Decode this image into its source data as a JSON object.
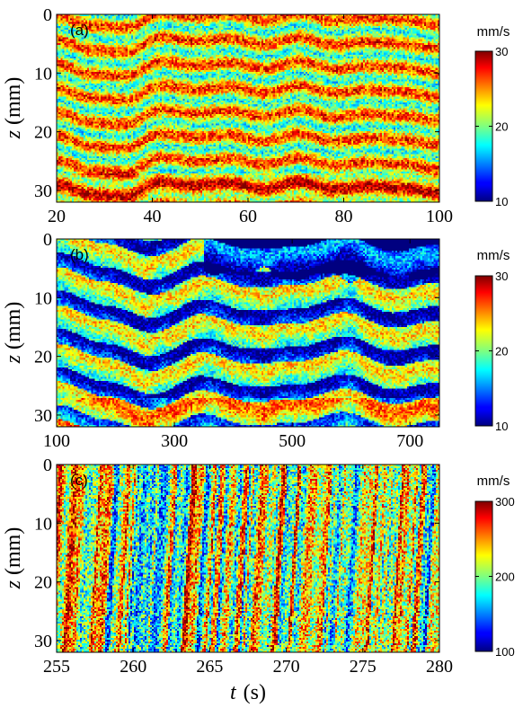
{
  "figure": {
    "xlabel_var": "t",
    "xlabel_unit": "(s)",
    "ylabel_var": "z",
    "ylabel_unit": "(mm)"
  },
  "chart_data": [
    {
      "type": "heatmap",
      "panel_label": "(a)",
      "xlim": [
        20,
        100
      ],
      "ylim": [
        0,
        32
      ],
      "x_ticks": [
        20,
        40,
        60,
        80,
        100
      ],
      "y_ticks": [
        0,
        10,
        20,
        30
      ],
      "y_reversed": true,
      "colorbar": {
        "unit": "mm/s",
        "min": 10,
        "max": 30,
        "ticks": [
          10,
          20,
          30
        ],
        "colormap": "jet"
      },
      "pattern": "horizontal stripes of high velocity (~25-30 mm/s) alternating with lower velocity (~15-20 mm/s) bands, roughly 4 mm period"
    },
    {
      "type": "heatmap",
      "panel_label": "(b)",
      "xlim": [
        100,
        750
      ],
      "ylim": [
        0,
        32
      ],
      "x_ticks": [
        100,
        300,
        500,
        700
      ],
      "y_ticks": [
        0,
        10,
        20,
        30
      ],
      "y_reversed": true,
      "colorbar": {
        "unit": "mm/s",
        "min": 10,
        "max": 30,
        "ticks": [
          10,
          20,
          30
        ],
        "colormap": "jet"
      },
      "pattern": "low-velocity (~10 mm/s) blue bands that merge and spread over time, large blue region near top at late times, higher values near bottom"
    },
    {
      "type": "heatmap",
      "panel_label": "(c)",
      "xlim": [
        255,
        280
      ],
      "ylim": [
        0,
        32
      ],
      "x_ticks": [
        255,
        260,
        265,
        270,
        275,
        280
      ],
      "y_ticks": [
        0,
        10,
        20,
        30
      ],
      "y_reversed": true,
      "colorbar": {
        "unit": "mm/s",
        "min": 100,
        "max": 300,
        "ticks": [
          100,
          200,
          300
        ],
        "colormap": "jet"
      },
      "pattern": "turbulent vertical streaks of high (~300 mm/s) and low (~100 mm/s) velocity varying rapidly in time"
    }
  ]
}
